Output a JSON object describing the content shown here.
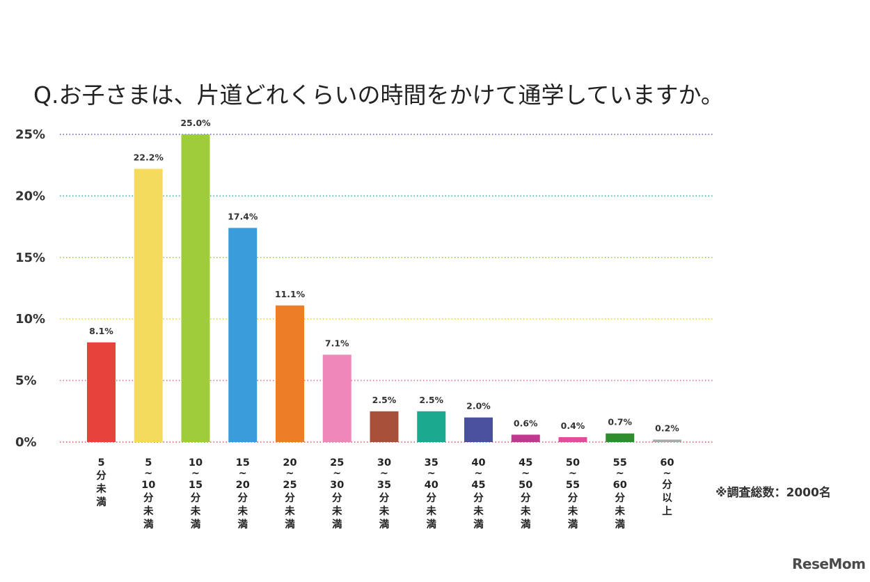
{
  "chart_data": {
    "type": "bar",
    "title": "Q.お子さまは、片道どれくらいの時間をかけて通学していますか。",
    "y_ticks": [
      "0%",
      "5%",
      "10%",
      "15%",
      "20%",
      "25%"
    ],
    "ylim": [
      0,
      25
    ],
    "grid": true,
    "categories": [
      [
        "5",
        "分",
        "未",
        "満"
      ],
      [
        "5",
        "~",
        "10",
        "分",
        "未",
        "満"
      ],
      [
        "10",
        "~",
        "15",
        "分",
        "未",
        "満"
      ],
      [
        "15",
        "~",
        "20",
        "分",
        "未",
        "満"
      ],
      [
        "20",
        "~",
        "25",
        "分",
        "未",
        "満"
      ],
      [
        "25",
        "~",
        "30",
        "分",
        "未",
        "満"
      ],
      [
        "30",
        "~",
        "35",
        "分",
        "未",
        "満"
      ],
      [
        "35",
        "~",
        "40",
        "分",
        "未",
        "満"
      ],
      [
        "40",
        "~",
        "45",
        "分",
        "未",
        "満"
      ],
      [
        "45",
        "~",
        "50",
        "分",
        "未",
        "満"
      ],
      [
        "50",
        "~",
        "55",
        "分",
        "未",
        "満"
      ],
      [
        "55",
        "~",
        "60",
        "分",
        "未",
        "満"
      ],
      [
        "60",
        "~",
        "分",
        "以",
        "上"
      ]
    ],
    "values": [
      8.1,
      22.2,
      25.0,
      17.4,
      11.1,
      7.1,
      2.5,
      2.5,
      2.0,
      0.6,
      0.4,
      0.7,
      0.2
    ],
    "value_labels": [
      "8.1%",
      "22.2%",
      "25.0%",
      "17.4%",
      "11.1%",
      "7.1%",
      "2.5%",
      "2.5%",
      "2.0%",
      "0.6%",
      "0.4%",
      "0.7%",
      "0.2%"
    ],
    "bar_colors": [
      "#e5433c",
      "#f5db5c",
      "#9fcc3b",
      "#3b9cdc",
      "#ee7e26",
      "#ee88b8",
      "#a9503a",
      "#1aa98f",
      "#4a4f9e",
      "#c2388f",
      "#e44d9a",
      "#2e8e2e",
      "#aaaaaa"
    ],
    "grid_colors": [
      "#e24a5a",
      "#e8699a",
      "#ead23a",
      "#9fcc3b",
      "#2ab5b0",
      "#5a5aa8"
    ],
    "note": "※調査総数：2000名"
  },
  "brand": {
    "logo": "ReseMom"
  }
}
